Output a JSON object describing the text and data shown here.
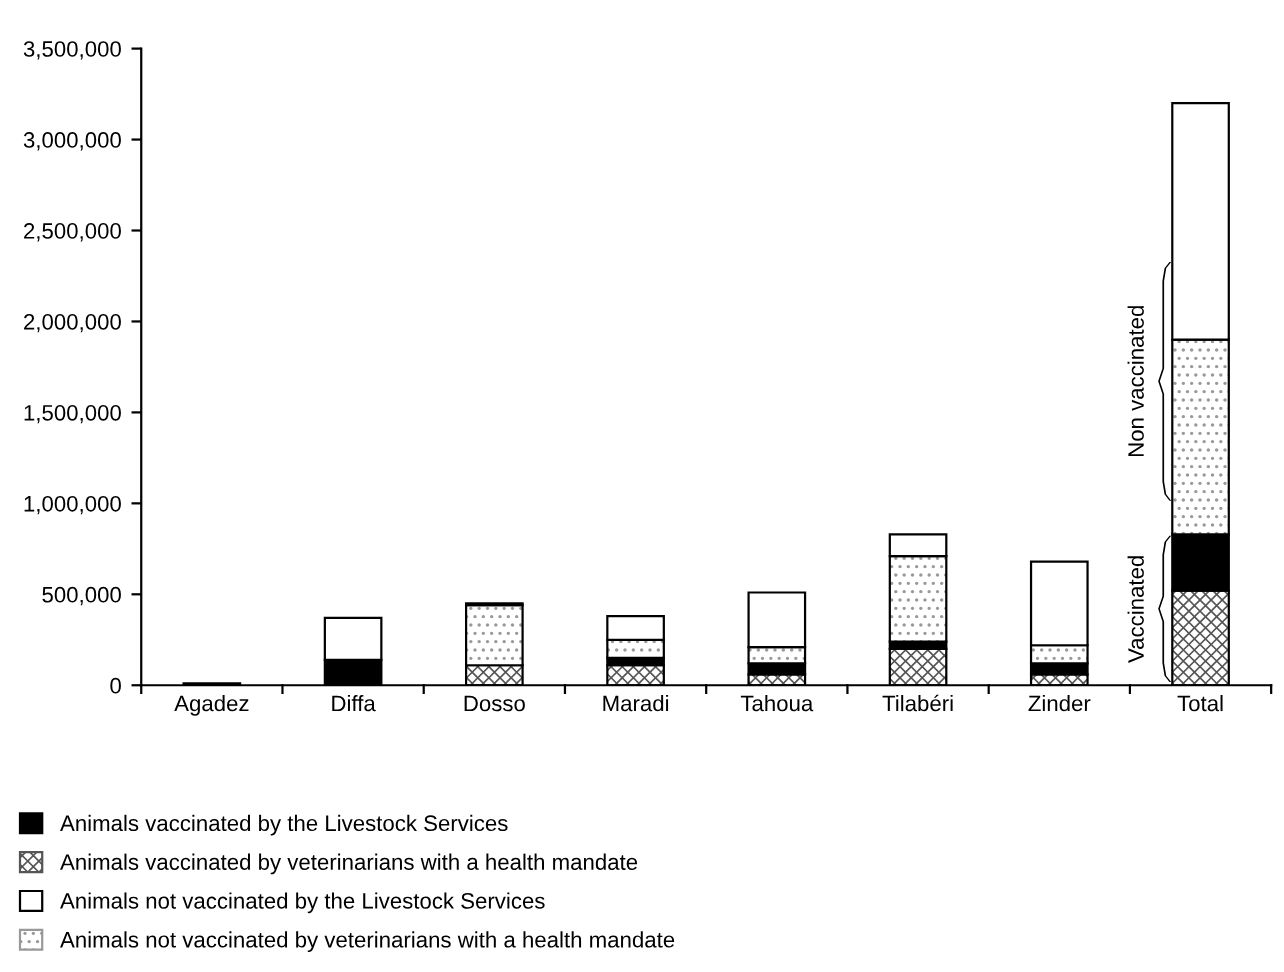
{
  "chart_data": {
    "type": "bar",
    "stacked": true,
    "categories": [
      "Agadez",
      "Diffa",
      "Dosso",
      "Maradi",
      "Tahoua",
      "Tilabéri",
      "Zinder",
      "Total"
    ],
    "series": [
      {
        "name": "Animals vaccinated by veterinarians with a health mandate",
        "color": "#555555",
        "values": [
          0,
          0,
          110000,
          110000,
          60000,
          200000,
          60000,
          520000
        ]
      },
      {
        "name": "Animals vaccinated by the Livestock Services",
        "color": "#000000",
        "values": [
          10000,
          140000,
          0,
          40000,
          60000,
          40000,
          60000,
          310000
        ]
      },
      {
        "name": "Animals not vaccinated by veterinarians with a health mandate",
        "color": "#999999",
        "values": [
          0,
          0,
          330000,
          100000,
          90000,
          470000,
          100000,
          1070000
        ]
      },
      {
        "name": "Animals not vaccinated by the Livestock Services",
        "color": "#ffffff",
        "values": [
          0,
          230000,
          10000,
          130000,
          300000,
          120000,
          460000,
          1300000
        ]
      }
    ],
    "ylim": [
      0,
      3500000
    ],
    "yticks": [
      {
        "value": 0,
        "label": "0"
      },
      {
        "value": 500000,
        "label": "500,000"
      },
      {
        "value": 1000000,
        "label": "1,000,000"
      },
      {
        "value": 1500000,
        "label": "1,500,000"
      },
      {
        "value": 2000000,
        "label": "2,000,000"
      },
      {
        "value": 2500000,
        "label": "2,500,000"
      },
      {
        "value": 3000000,
        "label": "3,000,000"
      },
      {
        "value": 3500000,
        "label": "3,500,000"
      }
    ],
    "grid": false,
    "legend": "bottom",
    "annotations": [
      "Vaccinated",
      "Non vaccinated"
    ]
  }
}
